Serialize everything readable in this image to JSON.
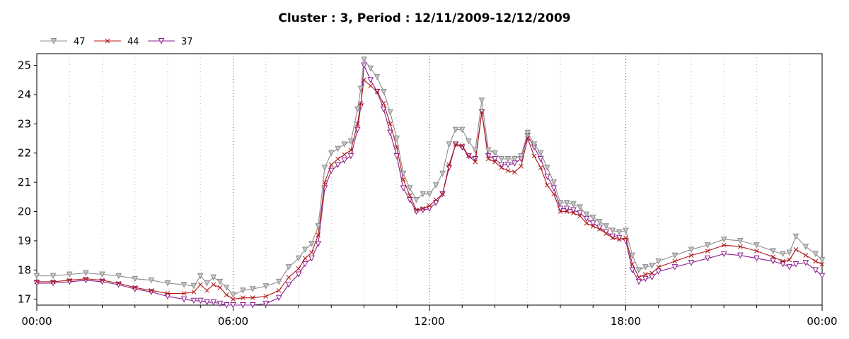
{
  "chart_data": {
    "type": "line",
    "title": "Cluster : 3, Period : 12/11/2009-12/12/2009",
    "xlabel": "",
    "ylabel": "",
    "x_tick_labels": [
      "00:00",
      "06:00",
      "12:00",
      "18:00",
      "00:00"
    ],
    "x_tick_hours": [
      0,
      6,
      12,
      18,
      24
    ],
    "y_ticks": [
      17,
      18,
      19,
      20,
      21,
      22,
      23,
      24,
      25
    ],
    "xlim": [
      0,
      24
    ],
    "ylim": [
      16.8,
      25.4
    ],
    "grid": "vertical dotted",
    "legend_position": "top-left",
    "x": [
      0,
      0.5,
      1,
      1.5,
      2,
      2.5,
      3,
      3.5,
      4,
      4.5,
      4.8,
      5,
      5.2,
      5.4,
      5.6,
      5.8,
      6,
      6.3,
      6.6,
      7,
      7.4,
      7.7,
      8,
      8.2,
      8.4,
      8.6,
      8.8,
      9,
      9.2,
      9.4,
      9.6,
      9.8,
      9.9,
      10,
      10.2,
      10.4,
      10.6,
      10.8,
      11,
      11.2,
      11.4,
      11.6,
      11.8,
      12,
      12.2,
      12.4,
      12.6,
      12.8,
      13,
      13.2,
      13.4,
      13.6,
      13.8,
      14,
      14.2,
      14.4,
      14.6,
      14.8,
      15,
      15.2,
      15.4,
      15.6,
      15.8,
      16,
      16.2,
      16.4,
      16.6,
      16.8,
      17,
      17.2,
      17.4,
      17.6,
      17.8,
      18,
      18.2,
      18.4,
      18.6,
      18.8,
      19,
      19.5,
      20,
      20.5,
      21,
      21.5,
      22,
      22.5,
      22.8,
      23,
      23.2,
      23.5,
      23.8,
      24
    ],
    "series": [
      {
        "name": "47",
        "color": "#8c8c8c",
        "marker": "triangle-down",
        "fill": "#c8c8c8",
        "values": [
          17.8,
          17.8,
          17.85,
          17.9,
          17.85,
          17.8,
          17.7,
          17.65,
          17.55,
          17.5,
          17.45,
          17.8,
          17.55,
          17.75,
          17.6,
          17.4,
          17.15,
          17.3,
          17.35,
          17.45,
          17.6,
          18.1,
          18.4,
          18.7,
          18.9,
          19.5,
          21.5,
          22.0,
          22.15,
          22.3,
          22.4,
          23.5,
          24.2,
          25.2,
          24.9,
          24.6,
          24.1,
          23.4,
          22.5,
          21.3,
          20.8,
          20.4,
          20.6,
          20.6,
          20.9,
          21.3,
          22.3,
          22.8,
          22.8,
          22.4,
          22.1,
          23.8,
          22.1,
          22.0,
          21.8,
          21.8,
          21.8,
          21.9,
          22.7,
          22.3,
          22.0,
          21.5,
          21.0,
          20.3,
          20.3,
          20.25,
          20.15,
          19.9,
          19.8,
          19.65,
          19.5,
          19.35,
          19.3,
          19.35,
          18.5,
          18.0,
          18.1,
          18.15,
          18.3,
          18.5,
          18.7,
          18.85,
          19.05,
          19.0,
          18.85,
          18.65,
          18.55,
          18.6,
          19.15,
          18.8,
          18.55,
          18.35
        ]
      },
      {
        "name": "44",
        "color": "#b01818",
        "marker": "x",
        "fill": "none",
        "values": [
          17.6,
          17.6,
          17.65,
          17.7,
          17.65,
          17.55,
          17.4,
          17.3,
          17.2,
          17.2,
          17.25,
          17.5,
          17.3,
          17.5,
          17.4,
          17.15,
          17.0,
          17.05,
          17.05,
          17.1,
          17.3,
          17.75,
          18.05,
          18.4,
          18.6,
          19.2,
          21.0,
          21.6,
          21.8,
          21.95,
          22.1,
          23.0,
          23.7,
          24.5,
          24.3,
          24.1,
          23.7,
          23.0,
          22.2,
          21.1,
          20.55,
          20.05,
          20.1,
          20.2,
          20.4,
          20.6,
          21.6,
          22.3,
          22.25,
          21.9,
          21.7,
          23.4,
          21.8,
          21.7,
          21.5,
          21.4,
          21.35,
          21.55,
          22.5,
          21.9,
          21.5,
          20.9,
          20.6,
          20.0,
          20.0,
          19.95,
          19.85,
          19.6,
          19.5,
          19.4,
          19.25,
          19.1,
          19.05,
          19.1,
          18.2,
          17.75,
          17.85,
          17.9,
          18.1,
          18.3,
          18.5,
          18.65,
          18.85,
          18.8,
          18.65,
          18.45,
          18.3,
          18.35,
          18.7,
          18.5,
          18.3,
          18.2
        ]
      },
      {
        "name": "37",
        "color": "#8a1e8e",
        "marker": "triangle-down",
        "fill": "none",
        "values": [
          17.55,
          17.55,
          17.6,
          17.65,
          17.6,
          17.5,
          17.35,
          17.25,
          17.1,
          17.0,
          16.95,
          16.95,
          16.9,
          16.9,
          16.85,
          16.8,
          16.8,
          16.8,
          16.8,
          16.85,
          17.05,
          17.5,
          17.85,
          18.2,
          18.4,
          18.9,
          20.8,
          21.4,
          21.6,
          21.75,
          21.9,
          22.8,
          23.6,
          25.0,
          24.5,
          24.1,
          23.5,
          22.7,
          21.9,
          20.8,
          20.4,
          20.0,
          20.05,
          20.1,
          20.3,
          20.6,
          21.5,
          22.3,
          22.2,
          21.9,
          21.8,
          23.4,
          21.9,
          21.8,
          21.6,
          21.6,
          21.65,
          21.8,
          22.6,
          22.2,
          21.8,
          21.2,
          20.8,
          20.1,
          20.1,
          20.05,
          19.95,
          19.75,
          19.6,
          19.45,
          19.3,
          19.15,
          19.1,
          19.0,
          18.0,
          17.6,
          17.7,
          17.75,
          17.95,
          18.1,
          18.25,
          18.4,
          18.55,
          18.5,
          18.4,
          18.3,
          18.2,
          18.1,
          18.2,
          18.25,
          18.0,
          17.8
        ]
      }
    ]
  }
}
